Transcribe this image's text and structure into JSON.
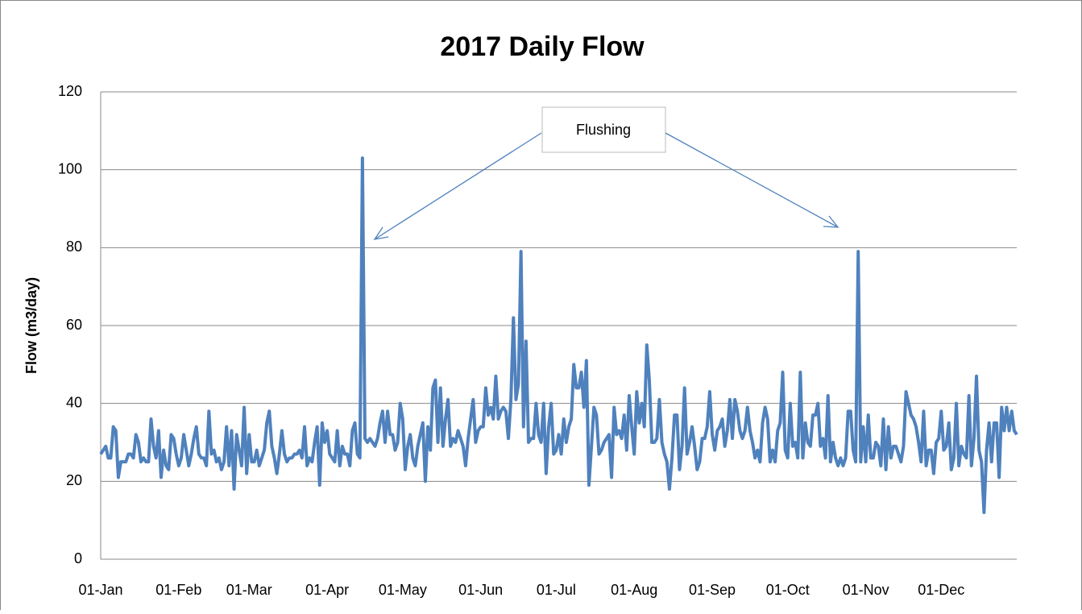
{
  "chart_data": {
    "type": "line",
    "title": "2017 Daily Flow",
    "y_label": "Flow (m3/day)",
    "annotation": "Flushing",
    "color": "#4f81bd",
    "grid": true,
    "ylim": [
      0,
      120
    ],
    "yticks": [
      0,
      20,
      40,
      60,
      80,
      100,
      120
    ],
    "categories": [
      "01-Jan",
      null,
      null,
      null,
      null,
      null,
      null,
      null,
      null,
      null,
      null,
      null,
      null,
      null,
      null,
      null,
      null,
      null,
      null,
      null,
      null,
      null,
      null,
      null,
      null,
      null,
      null,
      null,
      null,
      null,
      null,
      "01-Feb",
      null,
      null,
      null,
      null,
      null,
      null,
      null,
      null,
      null,
      null,
      null,
      null,
      null,
      null,
      null,
      null,
      null,
      null,
      null,
      null,
      null,
      null,
      null,
      null,
      null,
      null,
      null,
      "01-Mar",
      null,
      null,
      null,
      null,
      null,
      null,
      null,
      null,
      null,
      null,
      null,
      null,
      null,
      null,
      null,
      null,
      null,
      null,
      null,
      null,
      null,
      null,
      null,
      null,
      null,
      null,
      null,
      null,
      null,
      null,
      "01-Apr",
      null,
      null,
      null,
      null,
      null,
      null,
      null,
      null,
      null,
      null,
      null,
      null,
      null,
      null,
      null,
      null,
      null,
      null,
      null,
      null,
      null,
      null,
      null,
      null,
      null,
      null,
      null,
      null,
      null,
      "01-May",
      null,
      null,
      null,
      null,
      null,
      null,
      null,
      null,
      null,
      null,
      null,
      null,
      null,
      null,
      null,
      null,
      null,
      null,
      null,
      null,
      null,
      null,
      null,
      null,
      null,
      null,
      null,
      null,
      null,
      null,
      "01-Jun",
      null,
      null,
      null,
      null,
      null,
      null,
      null,
      null,
      null,
      null,
      null,
      null,
      null,
      null,
      null,
      null,
      null,
      null,
      null,
      null,
      null,
      null,
      null,
      null,
      null,
      null,
      null,
      null,
      null,
      "01-Jul",
      null,
      null,
      null,
      null,
      null,
      null,
      null,
      null,
      null,
      null,
      null,
      null,
      null,
      null,
      null,
      null,
      null,
      null,
      null,
      null,
      null,
      null,
      null,
      null,
      null,
      null,
      null,
      null,
      null,
      null,
      "01-Aug",
      null,
      null,
      null,
      null,
      null,
      null,
      null,
      null,
      null,
      null,
      null,
      null,
      null,
      null,
      null,
      null,
      null,
      null,
      null,
      null,
      null,
      null,
      null,
      null,
      null,
      null,
      null,
      null,
      null,
      null,
      "01-Sep",
      null,
      null,
      null,
      null,
      null,
      null,
      null,
      null,
      null,
      null,
      null,
      null,
      null,
      null,
      null,
      null,
      null,
      null,
      null,
      null,
      null,
      null,
      null,
      null,
      null,
      null,
      null,
      null,
      null,
      "01-Oct",
      null,
      null,
      null,
      null,
      null,
      null,
      null,
      null,
      null,
      null,
      null,
      null,
      null,
      null,
      null,
      null,
      null,
      null,
      null,
      null,
      null,
      null,
      null,
      null,
      null,
      null,
      null,
      null,
      null,
      null,
      "01-Nov",
      null,
      null,
      null,
      null,
      null,
      null,
      null,
      null,
      null,
      null,
      null,
      null,
      null,
      null,
      null,
      null,
      null,
      null,
      null,
      null,
      null,
      null,
      null,
      null,
      null,
      null,
      null,
      null,
      null,
      "01-Dec",
      null,
      null,
      null,
      null,
      null,
      null,
      null,
      null,
      null,
      null,
      null,
      null,
      null,
      null,
      null,
      null,
      null,
      null,
      null,
      null,
      null,
      null,
      null,
      null,
      null,
      null,
      null,
      null,
      null,
      null
    ],
    "values": [
      27,
      28,
      29,
      26,
      26,
      34,
      33,
      21,
      25,
      25,
      25,
      27,
      27,
      26,
      32,
      30,
      25,
      26,
      25,
      25,
      36,
      29,
      26,
      33,
      21,
      28,
      24,
      23,
      32,
      31,
      27,
      24,
      26,
      32,
      28,
      24,
      27,
      31,
      34,
      27,
      26,
      26,
      24,
      38,
      27,
      28,
      25,
      26,
      23,
      25,
      34,
      24,
      33,
      18,
      32,
      28,
      24,
      39,
      22,
      32,
      25,
      25,
      28,
      24,
      26,
      28,
      35,
      38,
      29,
      26,
      22,
      27,
      33,
      27,
      25,
      26,
      26,
      27,
      27,
      28,
      26,
      34,
      24,
      26,
      25,
      30,
      34,
      19,
      35,
      30,
      33,
      27,
      26,
      25,
      33,
      24,
      29,
      27,
      27,
      24,
      33,
      35,
      27,
      26,
      103,
      31,
      30,
      31,
      30,
      29,
      31,
      35,
      38,
      30,
      38,
      32,
      32,
      28,
      30,
      40,
      36,
      23,
      29,
      32,
      26,
      24,
      29,
      32,
      35,
      20,
      34,
      28,
      44,
      46,
      30,
      44,
      29,
      36,
      41,
      29,
      31,
      30,
      33,
      31,
      29,
      24,
      31,
      36,
      41,
      30,
      33,
      34,
      34,
      44,
      37,
      39,
      36,
      47,
      36,
      38,
      39,
      38,
      31,
      41,
      62,
      41,
      45,
      79,
      34,
      56,
      30,
      31,
      31,
      40,
      32,
      30,
      40,
      22,
      34,
      40,
      27,
      28,
      32,
      27,
      36,
      30,
      34,
      36,
      50,
      44,
      44,
      48,
      39,
      51,
      19,
      29,
      39,
      37,
      27,
      28,
      30,
      31,
      32,
      21,
      39,
      32,
      33,
      31,
      37,
      28,
      42,
      34,
      27,
      43,
      35,
      40,
      34,
      55,
      46,
      30,
      30,
      31,
      41,
      30,
      27,
      25,
      18,
      26,
      37,
      37,
      23,
      29,
      44,
      27,
      30,
      34,
      29,
      23,
      25,
      31,
      31,
      34,
      43,
      32,
      28,
      33,
      34,
      36,
      29,
      33,
      41,
      31,
      41,
      38,
      33,
      31,
      33,
      39,
      33,
      30,
      26,
      28,
      25,
      35,
      39,
      36,
      25,
      28,
      25,
      33,
      35,
      48,
      28,
      26,
      40,
      29,
      30,
      26,
      48,
      26,
      35,
      30,
      29,
      37,
      37,
      40,
      29,
      31,
      26,
      42,
      25,
      30,
      26,
      24,
      26,
      24,
      26,
      38,
      38,
      28,
      25,
      79,
      25,
      34,
      25,
      37,
      26,
      26,
      30,
      29,
      24,
      36,
      23,
      34,
      26,
      29,
      29,
      27,
      25,
      29,
      43,
      40,
      37,
      36,
      34,
      30,
      25,
      38,
      24,
      28,
      28,
      22,
      30,
      31,
      38,
      28,
      29,
      35,
      23,
      26,
      40,
      24,
      29,
      27,
      26,
      42,
      24,
      31,
      47,
      28,
      25,
      12,
      28,
      35,
      25,
      35,
      35,
      21,
      39,
      33,
      39,
      33,
      38,
      33,
      32
    ]
  }
}
